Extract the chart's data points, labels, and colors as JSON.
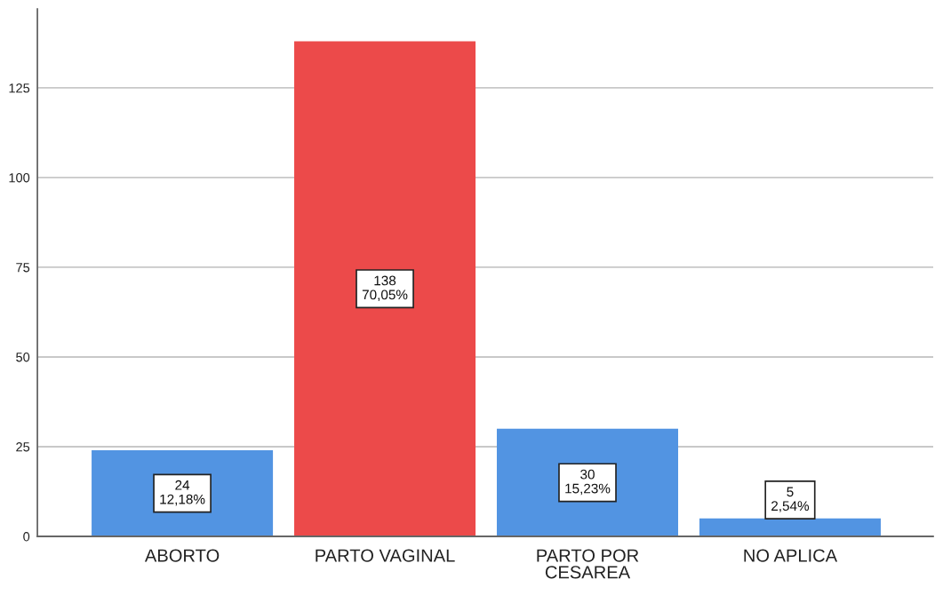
{
  "chart_data": {
    "type": "bar",
    "categories": [
      "ABORTO",
      "PARTO VAGINAL",
      "PARTO POR\nCESAREA",
      "NO APLICA"
    ],
    "values": [
      24,
      138,
      30,
      5
    ],
    "colors": [
      "#5294e2",
      "#ec4a4a",
      "#5294e2",
      "#5294e2"
    ],
    "value_labels": [
      "24\n12,18%",
      "138\n70,05%",
      "30\n15,23%",
      "5\n2,54%"
    ],
    "ylim": [
      0,
      147
    ],
    "yticks": [
      0,
      25,
      50,
      75,
      100,
      125
    ],
    "grid": "y"
  }
}
